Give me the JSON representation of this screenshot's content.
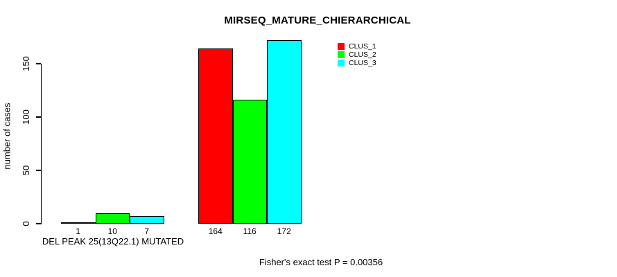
{
  "chart_data": {
    "type": "bar",
    "title": "MIRSEQ_MATURE_CHIERARCHICAL",
    "ylabel": "number of cases",
    "xlabel": "DEL PEAK 25(13Q22.1) MUTATED",
    "annotation": "Fisher's exact test P = 0.00356",
    "ylim": [
      0,
      172
    ],
    "yticks": [
      0,
      50,
      100,
      150
    ],
    "grid": false,
    "legend_position": "top-right",
    "bar_value_labels_shown": true,
    "group_count": 2,
    "series": [
      {
        "name": "CLUS_1",
        "color": "#ff0000",
        "values": [
          1,
          164
        ]
      },
      {
        "name": "CLUS_2",
        "color": "#00ff00",
        "values": [
          10,
          116
        ]
      },
      {
        "name": "CLUS_3",
        "color": "#00ffff",
        "values": [
          7,
          172
        ]
      }
    ],
    "background_color": "#ffffff",
    "text_color": "#000000"
  }
}
